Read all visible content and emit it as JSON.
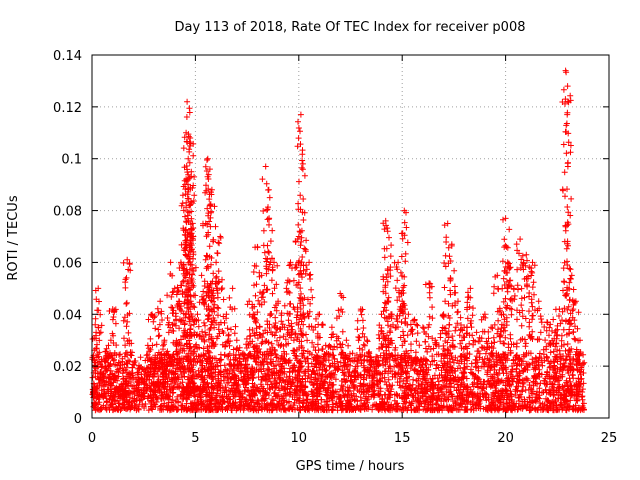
{
  "chart_data": {
    "type": "scatter",
    "title": "Day 113 of 2018, Rate Of TEC Index for receiver p008",
    "xlabel": "GPS time / hours",
    "ylabel": "ROTI / TECUs",
    "xlim": [
      0,
      25
    ],
    "ylim": [
      0,
      0.14
    ],
    "x_ticks": [
      0,
      5,
      10,
      15,
      20,
      25
    ],
    "x_tick_labels": [
      "0",
      "5",
      "10",
      "15",
      "20",
      "25"
    ],
    "y_ticks": [
      0,
      0.02,
      0.04,
      0.06,
      0.08,
      0.1,
      0.12,
      0.14
    ],
    "y_tick_labels": [
      "0",
      "0.02",
      "0.04",
      "0.06",
      "0.08",
      "0.1",
      "0.12",
      "0.14"
    ],
    "grid": true,
    "marker": "plus",
    "marker_color": "#ff0000",
    "series": [
      {
        "name": "ROTI",
        "x": [
          0.1,
          0.2,
          0.3,
          0.5,
          0.8,
          1.0,
          1.2,
          1.5,
          1.7,
          1.8,
          2.1,
          2.4,
          2.7,
          2.9,
          3.1,
          3.3,
          3.5,
          3.6,
          3.8,
          4.0,
          4.2,
          4.3,
          4.5,
          4.55,
          4.6,
          4.65,
          4.7,
          4.75,
          4.8,
          4.9,
          5.1,
          5.3,
          5.5,
          5.6,
          5.7,
          5.8,
          6.0,
          6.2,
          6.5,
          6.8,
          7.0,
          7.3,
          7.6,
          7.8,
          8.0,
          8.2,
          8.4,
          8.6,
          8.8,
          9.0,
          9.2,
          9.4,
          9.6,
          9.8,
          10.0,
          10.1,
          10.2,
          10.5,
          10.8,
          11.0,
          11.3,
          11.6,
          12.0,
          12.3,
          12.6,
          13.0,
          13.3,
          13.7,
          14.0,
          14.2,
          14.3,
          14.5,
          14.8,
          15.0,
          15.1,
          15.3,
          15.6,
          16.0,
          16.3,
          16.6,
          17.0,
          17.2,
          17.4,
          17.7,
          18.0,
          18.3,
          18.6,
          19.0,
          19.3,
          19.6,
          19.9,
          20.0,
          20.1,
          20.4,
          20.7,
          21.0,
          21.3,
          21.6,
          22.0,
          22.3,
          22.6,
          22.9,
          23.0,
          23.2,
          23.4,
          23.6
        ],
        "y": [
          0.012,
          0.033,
          0.05,
          0.02,
          0.028,
          0.042,
          0.018,
          0.015,
          0.061,
          0.03,
          0.022,
          0.015,
          0.028,
          0.04,
          0.019,
          0.045,
          0.03,
          0.025,
          0.06,
          0.05,
          0.045,
          0.06,
          0.09,
          0.11,
          0.122,
          0.1,
          0.082,
          0.108,
          0.095,
          0.07,
          0.04,
          0.055,
          0.075,
          0.1,
          0.096,
          0.088,
          0.06,
          0.07,
          0.04,
          0.05,
          0.03,
          0.025,
          0.045,
          0.04,
          0.066,
          0.055,
          0.097,
          0.085,
          0.06,
          0.045,
          0.035,
          0.05,
          0.06,
          0.042,
          0.07,
          0.117,
          0.098,
          0.06,
          0.035,
          0.04,
          0.028,
          0.035,
          0.048,
          0.03,
          0.025,
          0.042,
          0.03,
          0.022,
          0.04,
          0.076,
          0.072,
          0.04,
          0.06,
          0.045,
          0.08,
          0.04,
          0.038,
          0.035,
          0.052,
          0.03,
          0.04,
          0.075,
          0.067,
          0.045,
          0.035,
          0.05,
          0.033,
          0.04,
          0.035,
          0.055,
          0.04,
          0.077,
          0.06,
          0.05,
          0.069,
          0.063,
          0.06,
          0.045,
          0.037,
          0.038,
          0.042,
          0.134,
          0.128,
          0.055,
          0.045,
          0.03
        ]
      }
    ],
    "background_band": {
      "description_range_y": [
        0.003,
        0.02
      ],
      "x_range": [
        0,
        23.8
      ]
    }
  }
}
